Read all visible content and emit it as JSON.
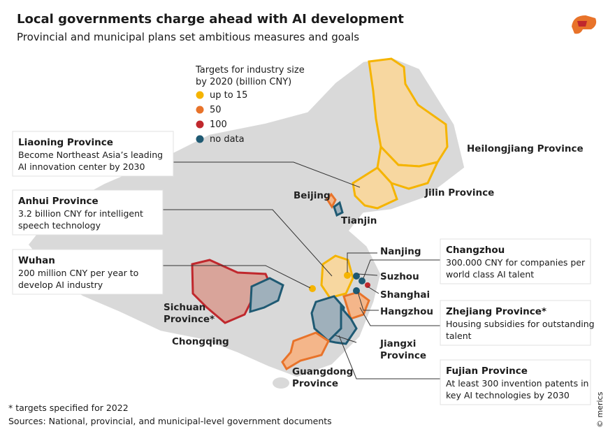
{
  "header": {
    "title": "Local governments charge ahead with AI development",
    "subtitle": "Provincial and municipal plans set ambitious measures and goals"
  },
  "legend": {
    "title_lines": [
      "Targets for industry size",
      "by 2020 (billion CNY)"
    ],
    "items": [
      {
        "label": "up to 15",
        "color": "#f5b400"
      },
      {
        "label": "50",
        "color": "#e8732a"
      },
      {
        "label": "100",
        "color": "#c0282d"
      },
      {
        "label": "no data",
        "color": "#1f5a73"
      }
    ]
  },
  "callouts": [
    {
      "title": "Liaoning Province",
      "lines": [
        "Become Northeast Asia’s leading",
        "AI innovation center by 2030"
      ]
    },
    {
      "title": "Anhui Province",
      "lines": [
        "3.2 billion CNY for intelligent",
        "speech technology"
      ]
    },
    {
      "title": "Wuhan",
      "lines": [
        "200 million CNY per year to",
        "develop AI industry"
      ]
    },
    {
      "title": "Changzhou",
      "lines": [
        "300.000 CNY for companies per",
        "world class AI talent"
      ]
    },
    {
      "title": "Zhejiang Province*",
      "lines": [
        "Housing subsidies for outstanding",
        "talent"
      ]
    },
    {
      "title": "Fujian Province",
      "lines": [
        "At least 300 invention patents in",
        "key AI technologies by 2030"
      ]
    }
  ],
  "map_labels": {
    "heilongjiang": [
      "Heilongjiang Province"
    ],
    "jilin": [
      "Jilin Province"
    ],
    "beijing": [
      "Beijing"
    ],
    "tianjin": [
      "Tianjin"
    ],
    "nanjing": [
      "Nanjing"
    ],
    "suzhou": [
      "Suzhou"
    ],
    "shanghai": [
      "Shanghai"
    ],
    "hangzhou": [
      "Hangzhou"
    ],
    "sichuan": [
      "Sichuan",
      "Province*"
    ],
    "chongqing": [
      "Chongqing"
    ],
    "jiangxi": [
      "Jiangxi",
      "Province"
    ],
    "guangdong": [
      "Guangdong",
      "Province"
    ]
  },
  "footer": {
    "footnote": "* targets specified for 2022",
    "sources": "Sources: National, provincial, and municipal-level government documents",
    "credit": "© merics"
  }
}
